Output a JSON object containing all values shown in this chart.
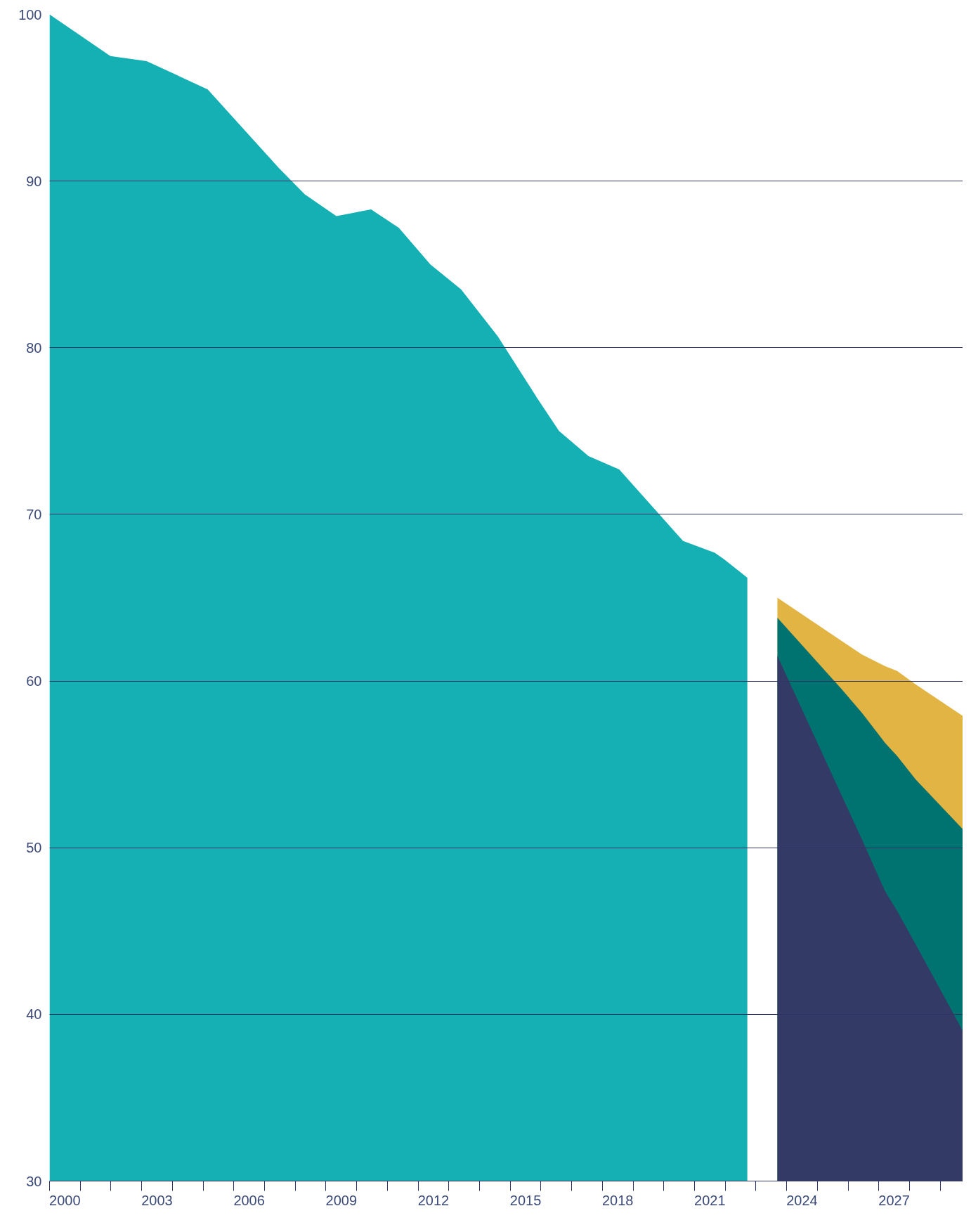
{
  "chart_data": {
    "type": "area",
    "grid": "y",
    "xlim": [
      2000,
      2029.74
    ],
    "ylim": [
      30,
      100
    ],
    "yticks": [
      30,
      40,
      50,
      60,
      70,
      80,
      90,
      100
    ],
    "xticks": [
      {
        "value": 2000,
        "label": null
      },
      {
        "value": 2001,
        "label": null
      },
      {
        "value": 2002,
        "label": null
      },
      {
        "value": 2003,
        "label": null
      },
      {
        "value": 2004,
        "label": null
      },
      {
        "value": 2005,
        "label": null
      },
      {
        "value": 2006,
        "label": null
      },
      {
        "value": 2007,
        "label": null
      },
      {
        "value": 2008,
        "label": null
      },
      {
        "value": 2009,
        "label": null
      },
      {
        "value": 2010,
        "label": null
      },
      {
        "value": 2011,
        "label": null
      },
      {
        "value": 2012,
        "label": null
      },
      {
        "value": 2013,
        "label": null
      },
      {
        "value": 2014,
        "label": null
      },
      {
        "value": 2015,
        "label": null
      },
      {
        "value": 2016,
        "label": null
      },
      {
        "value": 2017,
        "label": null
      },
      {
        "value": 2018,
        "label": null
      },
      {
        "value": 2019,
        "label": null
      },
      {
        "value": 2020,
        "label": null
      },
      {
        "value": 2021,
        "label": null
      },
      {
        "value": 2022,
        "label": null
      },
      {
        "value": 2023,
        "label": null
      },
      {
        "value": 2024,
        "label": null
      },
      {
        "value": 2025,
        "label": null
      },
      {
        "value": 2026,
        "label": null
      },
      {
        "value": 2027,
        "label": null
      },
      {
        "value": 2028,
        "label": null
      },
      {
        "value": 2029,
        "label": null
      },
      {
        "value": 2000.5,
        "label": "2000"
      },
      {
        "value": 2003.5,
        "label": "2003"
      },
      {
        "value": 2006.5,
        "label": "2006"
      },
      {
        "value": 2009.5,
        "label": "2009"
      },
      {
        "value": 2012.5,
        "label": "2012"
      },
      {
        "value": 2015.5,
        "label": "2015"
      },
      {
        "value": 2018.5,
        "label": "2018"
      },
      {
        "value": 2021.5,
        "label": "2021"
      },
      {
        "value": 2024.5,
        "label": "2024"
      },
      {
        "value": 2027.5,
        "label": "2027"
      }
    ],
    "series": [
      {
        "color": "#14b0b3",
        "x": [
          2000,
          2001.98,
          2003.16,
          2005.15,
          2007.46,
          2008.31,
          2009.34,
          2010.47,
          2011.37,
          2012.4,
          2013.4,
          2014.59,
          2015.87,
          2016.59,
          2017.55,
          2018.55,
          2020.63,
          2021.66,
          2021.97,
          2022.72
        ],
        "values": [
          100,
          97.5,
          97.2,
          95.5,
          90.8,
          89.2,
          87.9,
          88.3,
          87.2,
          85,
          83.5,
          80.7,
          77,
          75,
          73.5,
          72.7,
          68.4,
          67.7,
          67.3,
          66.2
        ]
      },
      {
        "color": "#e2b443",
        "x": [
          2023.7,
          2025.8,
          2026.45,
          2027.2,
          2027.6,
          2028.2,
          2029.74
        ],
        "values": [
          65,
          62.4,
          61.6,
          60.9,
          60.6,
          59.8,
          57.9
        ]
      },
      {
        "color": "#007370",
        "x": [
          2023.7,
          2025.8,
          2026.45,
          2027.2,
          2027.6,
          2028.2,
          2029.74
        ],
        "values": [
          63.8,
          59.5,
          58.1,
          56.3,
          55.5,
          54.1,
          51.1
        ]
      },
      {
        "color": "#333a66",
        "x": [
          2023.7,
          2025.8,
          2026.45,
          2027.2,
          2027.6,
          2028.2,
          2029.74
        ],
        "values": [
          61.5,
          53.1,
          50.5,
          47.4,
          46.2,
          44.2,
          39
        ]
      }
    ]
  }
}
